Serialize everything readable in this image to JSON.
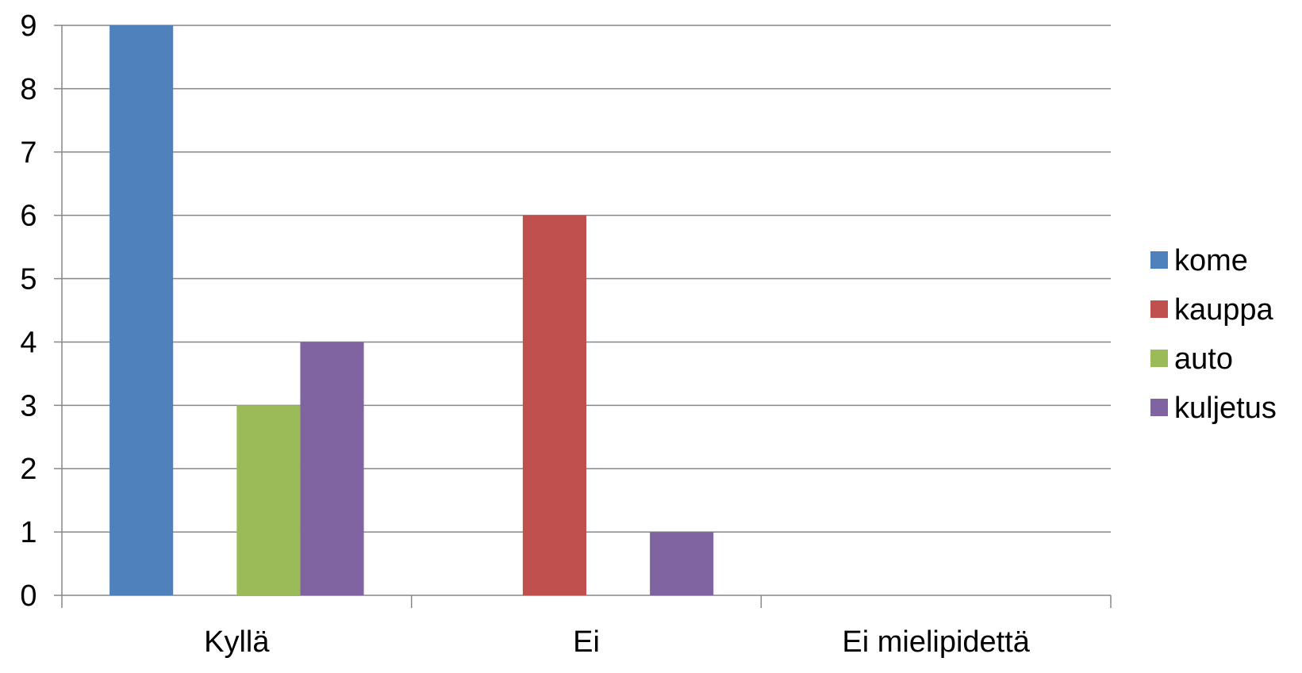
{
  "chart_data": {
    "type": "bar",
    "categories": [
      "Kyllä",
      "Ei",
      "Ei mielipidettä"
    ],
    "series": [
      {
        "name": "kome",
        "values": [
          9,
          0,
          0
        ],
        "color": "#4f81bd"
      },
      {
        "name": "kauppa",
        "values": [
          0,
          6,
          0
        ],
        "color": "#c0504d"
      },
      {
        "name": "auto",
        "values": [
          3,
          0,
          0
        ],
        "color": "#9bbb59"
      },
      {
        "name": "kuljetus",
        "values": [
          4,
          1,
          0
        ],
        "color": "#8064a2"
      }
    ],
    "ylim": [
      0,
      9
    ],
    "yticks": [
      "0",
      "1",
      "2",
      "3",
      "4",
      "5",
      "6",
      "7",
      "8",
      "9"
    ],
    "title": "",
    "xlabel": "",
    "ylabel": "",
    "grid": true,
    "legend_position": "right"
  }
}
